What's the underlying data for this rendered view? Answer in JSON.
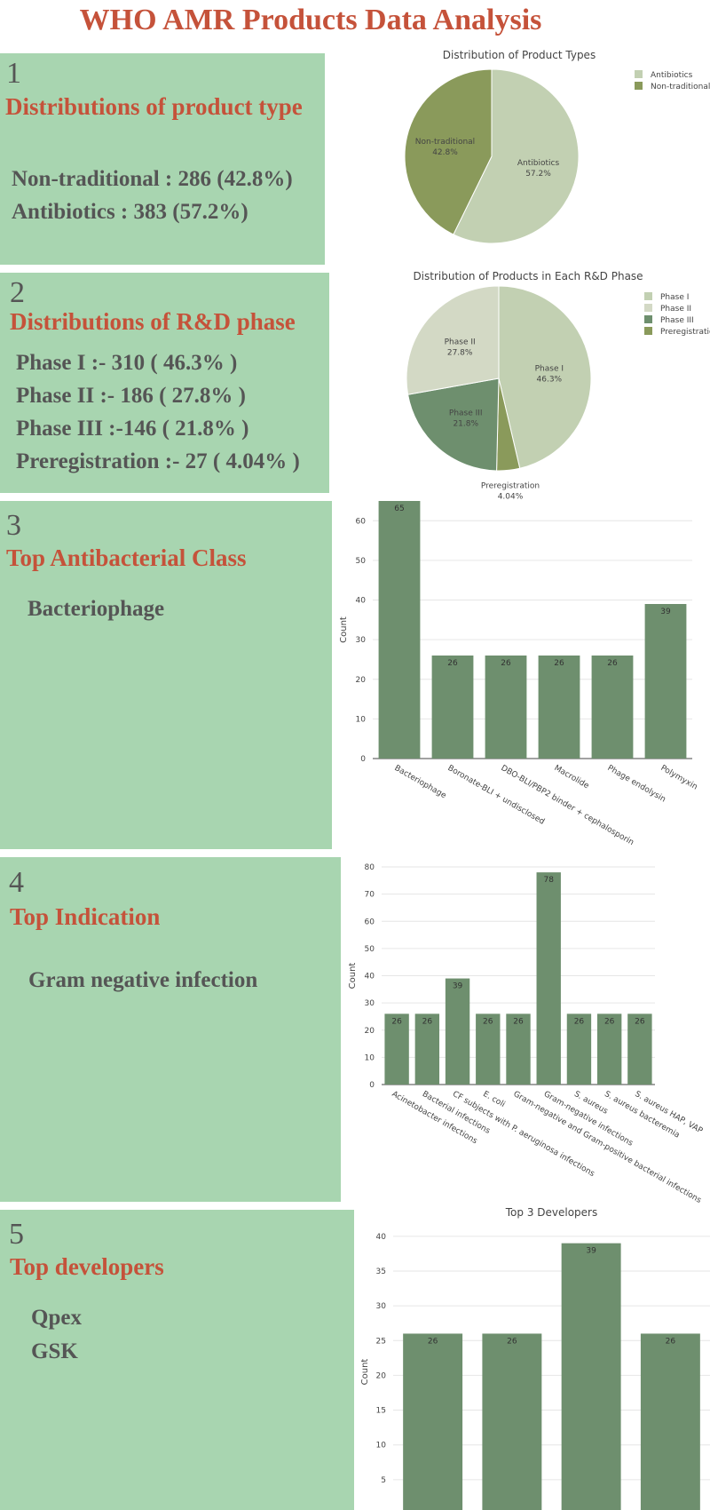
{
  "page": {
    "title": "WHO AMR Products Data Analysis"
  },
  "sections": [
    {
      "number": "1",
      "heading": "Distributions of product type",
      "lines": [
        "Non-traditional : 286 (42.8%)",
        "Antibiotics : 383 (57.2%)"
      ]
    },
    {
      "number": "2",
      "heading": "Distributions of R&D phase",
      "lines": [
        "Phase I :- 310 ( 46.3% )",
        "Phase II :- 186 ( 27.8% )",
        "Phase III :-146 ( 21.8% )",
        "Preregistration :- 27 ( 4.04% )"
      ]
    },
    {
      "number": "3",
      "heading": "Top Antibacterial Class",
      "lines": [
        "Bacteriophage"
      ]
    },
    {
      "number": "4",
      "heading": "Top Indication",
      "lines": [
        "Gram negative infection"
      ]
    },
    {
      "number": "5",
      "heading": "Top developers",
      "lines": [
        "Qpex",
        "GSK"
      ]
    }
  ],
  "colors": {
    "panel": "#a8d5b0",
    "heading": "#c5523a",
    "body_text": "#555555",
    "bar": "#6e8f6e",
    "grid": "#e6e6e6"
  },
  "chart_data": [
    {
      "type": "pie",
      "title": "Distribution of Product Types",
      "labels": [
        "Antibiotics",
        "Non-traditional"
      ],
      "values": [
        383,
        286
      ],
      "percent_labels": [
        "57.2%",
        "42.8%"
      ],
      "colors": [
        "#c2d0b2",
        "#8a9a5b"
      ],
      "legend": {
        "placement": "top-right",
        "entries": [
          "Antibiotics",
          "Non-traditional"
        ]
      }
    },
    {
      "type": "pie",
      "title": "Distribution of Products in Each R&D Phase",
      "labels": [
        "Phase I",
        "Preregistration",
        "Phase III",
        "Phase II"
      ],
      "values": [
        310,
        27,
        146,
        186
      ],
      "percent_labels": [
        "46.3%",
        "4.04%",
        "21.8%",
        "27.8%"
      ],
      "colors": [
        "#c2d0b2",
        "#8a9a5b",
        "#6e8f6e",
        "#d3d9c5"
      ],
      "legend": {
        "placement": "top-right",
        "entries": [
          "Phase I",
          "Phase II",
          "Phase III",
          "Preregistratio"
        ]
      }
    },
    {
      "type": "bar",
      "title": "",
      "categories": [
        "Bacteriophage",
        "Boronate-BLI + undisclosed",
        "DBO-BLI/PBP2 binder + cephalosporin",
        "Macrolide",
        "Phage endolysin",
        "Polymyxin"
      ],
      "values": [
        65,
        26,
        26,
        26,
        26,
        39
      ],
      "ylabel": "Count",
      "ylim": [
        0,
        65
      ],
      "yticks": [
        0,
        10,
        20,
        30,
        40,
        50,
        60
      ],
      "grid": true
    },
    {
      "type": "bar",
      "title": "",
      "categories": [
        "Acinetobacter infections",
        "Bacterial infections",
        "CF subjects with P. aeruginosa infections",
        "E. coli",
        "Gram-negative and Gram-positive bacterial infections",
        "Gram-negative infections",
        "S. aureus",
        "S. aureus bacteremia",
        "S. aureus HAP, VAP"
      ],
      "values": [
        26,
        26,
        39,
        26,
        26,
        78,
        26,
        26,
        26
      ],
      "ylabel": "Count",
      "ylim": [
        0,
        80
      ],
      "yticks": [
        0,
        10,
        20,
        30,
        40,
        50,
        60,
        70,
        80
      ],
      "grid": true
    },
    {
      "type": "bar",
      "title": "Top 3 Developers",
      "categories": [
        "",
        "",
        "",
        ""
      ],
      "values": [
        26,
        26,
        39,
        26
      ],
      "ylabel": "Count",
      "ylim": [
        0,
        41
      ],
      "yticks": [
        5,
        10,
        15,
        20,
        25,
        30,
        35,
        40
      ],
      "grid": true
    }
  ]
}
